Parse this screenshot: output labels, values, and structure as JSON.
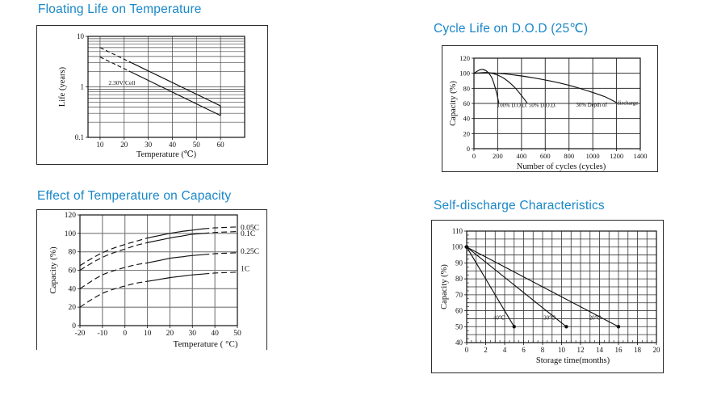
{
  "page": {
    "name": "battery-characteristics-charts"
  },
  "title_color": "#1987c8",
  "chart_data": [
    {
      "type": "line",
      "title": "Floating Life on Temperature",
      "xlabel": "Temperature (℃)",
      "ylabel": "Life (years)",
      "xlim": [
        5,
        70
      ],
      "ylim": [
        0.1,
        10
      ],
      "ylog": true,
      "xticks": [
        10,
        20,
        30,
        40,
        50,
        60
      ],
      "yticks": [
        0.1,
        1,
        10
      ],
      "gridx": [
        10,
        20,
        30,
        40,
        50,
        60
      ],
      "gridy": [
        0.2,
        0.3,
        0.4,
        0.5,
        0.6,
        0.7,
        0.8,
        0.9,
        1,
        2,
        3,
        4,
        5,
        6,
        7,
        8,
        9
      ],
      "series": [
        {
          "name": "band-upper-dashed",
          "dash": "5,3",
          "points": [
            [
              10,
              6
            ],
            [
              22,
              3.17
            ]
          ]
        },
        {
          "name": "band-upper",
          "points": [
            [
              22,
              3.17
            ],
            [
              60,
              0.42
            ]
          ]
        },
        {
          "name": "band-lower-dashed",
          "dash": "5,3",
          "points": [
            [
              10,
              3.9
            ],
            [
              22,
              2.06
            ]
          ]
        },
        {
          "name": "band-lower",
          "points": [
            [
              22,
              2.06
            ],
            [
              60,
              0.27
            ]
          ]
        },
        {
          "name": "band-end-cap",
          "points": [
            [
              60,
              0.42
            ],
            [
              60,
              0.27
            ]
          ]
        }
      ],
      "annotations": [
        {
          "text": "2.30V/Cell",
          "x": 13.5,
          "y": 1.1
        }
      ]
    },
    {
      "type": "line",
      "title": "Cycle Life on D.O.D (25℃)",
      "xlabel": "Number of cycles (cycles)",
      "ylabel": "Capacity  (%)",
      "xlim": [
        0,
        1400
      ],
      "ylim": [
        0,
        120
      ],
      "xticks": [
        0,
        200,
        400,
        600,
        800,
        1000,
        1200,
        1400
      ],
      "yticks": [
        0,
        20,
        40,
        60,
        80,
        100,
        120
      ],
      "gridx": [
        200,
        400,
        600,
        800,
        1000,
        1200
      ],
      "gridy": [
        20,
        40,
        60,
        80,
        100
      ],
      "series": [
        {
          "name": "100% D.O.D.",
          "smooth": true,
          "points": [
            [
              0,
              100
            ],
            [
              25,
              102.5
            ],
            [
              50,
              104.5
            ],
            [
              75,
              105
            ],
            [
              100,
              103.5
            ],
            [
              125,
              100
            ],
            [
              150,
              94
            ],
            [
              175,
              83
            ],
            [
              195,
              71
            ],
            [
              210,
              60
            ]
          ]
        },
        {
          "name": "50% D.O.D.",
          "smooth": true,
          "points": [
            [
              0,
              100
            ],
            [
              50,
              100.5
            ],
            [
              100,
              101
            ],
            [
              150,
              100
            ],
            [
              200,
              97.5
            ],
            [
              250,
              93.5
            ],
            [
              300,
              87.5
            ],
            [
              350,
              80
            ],
            [
              400,
              70.5
            ],
            [
              450,
              60
            ]
          ]
        },
        {
          "name": "30% Depth of discharge",
          "smooth": true,
          "points": [
            [
              0,
              100
            ],
            [
              100,
              100.5
            ],
            [
              200,
              100
            ],
            [
              350,
              97.5
            ],
            [
              500,
              94
            ],
            [
              650,
              89.5
            ],
            [
              800,
              84
            ],
            [
              950,
              77
            ],
            [
              1100,
              69
            ],
            [
              1200,
              61
            ]
          ]
        }
      ],
      "annotations": [
        {
          "text": "100% D.O.D.",
          "x": 196,
          "y": 55
        },
        {
          "text": "50% D.O.D.",
          "x": 462,
          "y": 55
        },
        {
          "text": "30% Depth of",
          "x": 860,
          "y": 55.5
        },
        {
          "text": "discharge",
          "x": 1205,
          "y": 58.5
        }
      ]
    },
    {
      "type": "line",
      "title": "Effect of Temperature on Capacity",
      "xlabel": "Temperature ( °C)",
      "ylabel": "Capacity  (%)",
      "xlim": [
        -20,
        50
      ],
      "ylim": [
        0,
        120
      ],
      "xticks": [
        -20,
        -10,
        0,
        10,
        20,
        30,
        40,
        50
      ],
      "yticks": [
        0,
        20,
        40,
        60,
        80,
        100,
        120
      ],
      "gridx": [
        -10,
        0,
        10,
        20,
        30,
        40
      ],
      "gridy": [
        20,
        40,
        60,
        80,
        100
      ],
      "dash_style": "7,4",
      "series": [
        {
          "name": "0.05C",
          "smooth": true,
          "solid_range": [
            10,
            35
          ],
          "points": [
            [
              -20,
              65
            ],
            [
              -15,
              72.5
            ],
            [
              -10,
              79
            ],
            [
              -5,
              84
            ],
            [
              0,
              88
            ],
            [
              5,
              91.5
            ],
            [
              10,
              95
            ],
            [
              15,
              97.5
            ],
            [
              20,
              100
            ],
            [
              25,
              102
            ],
            [
              30,
              103.5
            ],
            [
              35,
              105
            ],
            [
              40,
              106
            ],
            [
              45,
              106.5
            ],
            [
              50,
              107
            ]
          ]
        },
        {
          "name": "0.1C",
          "smooth": true,
          "solid_range": [
            10,
            35
          ],
          "points": [
            [
              -20,
              60
            ],
            [
              -15,
              67.5
            ],
            [
              -10,
              74
            ],
            [
              -5,
              79
            ],
            [
              0,
              83
            ],
            [
              5,
              87
            ],
            [
              10,
              90
            ],
            [
              15,
              92.5
            ],
            [
              20,
              95
            ],
            [
              25,
              97
            ],
            [
              30,
              99
            ],
            [
              35,
              100
            ],
            [
              40,
              101
            ],
            [
              45,
              101.5
            ],
            [
              50,
              102
            ]
          ]
        },
        {
          "name": "0.25C",
          "smooth": true,
          "solid_range": [
            10,
            35
          ],
          "points": [
            [
              -20,
              40
            ],
            [
              -15,
              48
            ],
            [
              -10,
              55
            ],
            [
              -5,
              59.5
            ],
            [
              0,
              63
            ],
            [
              5,
              66
            ],
            [
              10,
              68
            ],
            [
              15,
              70.5
            ],
            [
              20,
              73
            ],
            [
              25,
              74.5
            ],
            [
              30,
              76
            ],
            [
              35,
              77
            ],
            [
              40,
              78
            ],
            [
              45,
              78.5
            ],
            [
              50,
              79
            ]
          ]
        },
        {
          "name": "1C",
          "smooth": true,
          "solid_range": [
            10,
            35
          ],
          "points": [
            [
              -20,
              20
            ],
            [
              -15,
              28
            ],
            [
              -10,
              35
            ],
            [
              -5,
              39.5
            ],
            [
              0,
              43
            ],
            [
              5,
              46
            ],
            [
              10,
              48
            ],
            [
              15,
              50
            ],
            [
              20,
              52
            ],
            [
              25,
              53.5
            ],
            [
              30,
              55
            ],
            [
              35,
              56
            ],
            [
              40,
              57
            ],
            [
              45,
              57.5
            ],
            [
              50,
              58
            ]
          ]
        }
      ],
      "curve_labels": [
        {
          "text": "0.05C",
          "y": 107
        },
        {
          "text": "0.1C",
          "y": 100.5
        },
        {
          "text": "0.25C",
          "y": 81
        },
        {
          "text": "1C",
          "y": 62
        }
      ]
    },
    {
      "type": "line",
      "title": "Self-discharge Characteristics",
      "xlabel": "Storage time(months)",
      "ylabel": "Capacity (%)",
      "xlim": [
        0,
        20
      ],
      "ylim": [
        40,
        110
      ],
      "xticks": [
        0,
        2,
        4,
        6,
        8,
        10,
        12,
        14,
        16,
        18,
        20
      ],
      "yticks": [
        40,
        50,
        60,
        70,
        80,
        90,
        100,
        110
      ],
      "gridx": [
        1,
        2,
        3,
        4,
        5,
        6,
        7,
        8,
        9,
        10,
        11,
        12,
        13,
        14,
        15,
        16,
        17,
        18,
        19
      ],
      "gridy": [
        45,
        50,
        55,
        60,
        65,
        70,
        75,
        80,
        85,
        90,
        95,
        100,
        105
      ],
      "xminor": 0.5,
      "yminor": 2.5,
      "series": [
        {
          "name": "40℃",
          "markers": true,
          "points": [
            [
              0,
              100
            ],
            [
              5,
              50
            ]
          ]
        },
        {
          "name": "30℃",
          "markers": true,
          "points": [
            [
              0,
              100
            ],
            [
              10.5,
              50
            ]
          ]
        },
        {
          "name": "20℃",
          "markers": true,
          "points": [
            [
              0,
              100
            ],
            [
              16,
              50
            ]
          ]
        }
      ],
      "annotations": [
        {
          "text": "40℃",
          "x": 2.8,
          "y": 54.5
        },
        {
          "text": "30℃",
          "x": 8.1,
          "y": 54.5
        },
        {
          "text": "20℃",
          "x": 12.9,
          "y": 54.5
        }
      ]
    }
  ]
}
